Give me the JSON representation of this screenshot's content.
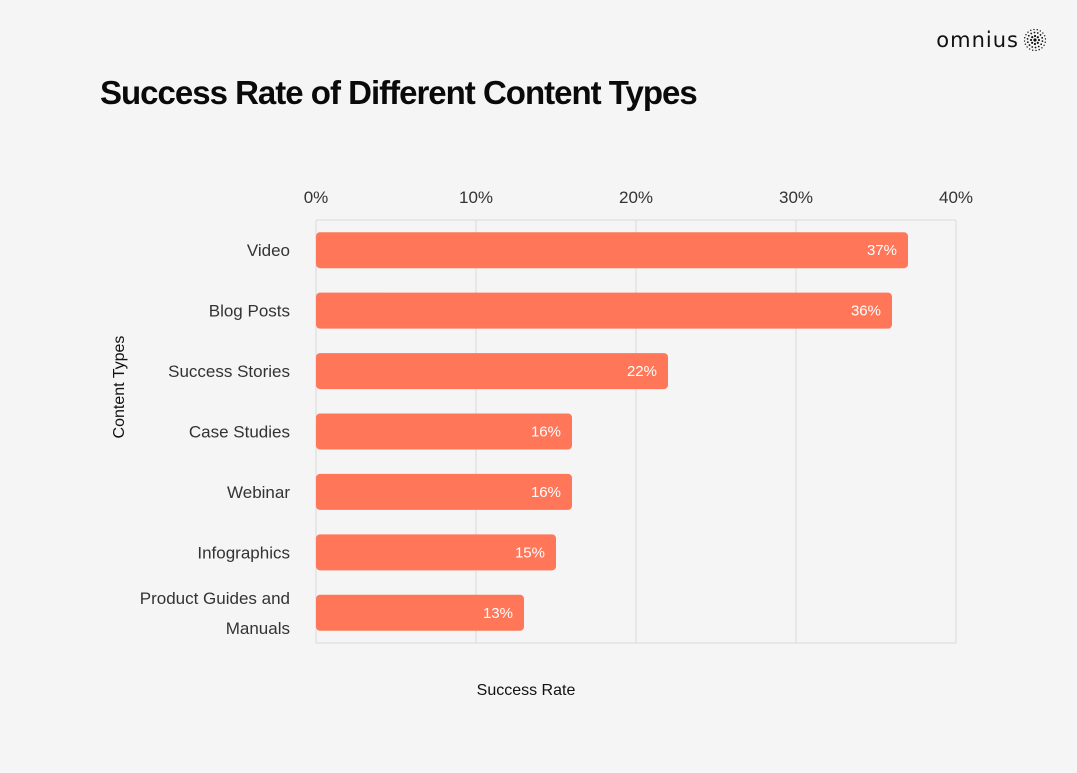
{
  "brand": {
    "name": "omnius",
    "logo_icon": "dotted-sphere-icon"
  },
  "chart_data": {
    "type": "bar",
    "orientation": "horizontal",
    "title": "Success Rate of Different Content Types",
    "xlabel": "Success Rate",
    "ylabel": "Content Types",
    "xlim": [
      0,
      40
    ],
    "x_ticks": [
      "0%",
      "10%",
      "20%",
      "30%",
      "40%"
    ],
    "grid": true,
    "categories": [
      "Video",
      "Blog Posts",
      "Success Stories",
      "Case Studies",
      "Webinar",
      "Infographics",
      "Product Guides and Manuals"
    ],
    "values": [
      37,
      36,
      22,
      16,
      16,
      15,
      13
    ],
    "data_labels": [
      "37%",
      "36%",
      "22%",
      "16%",
      "16%",
      "15%",
      "13%"
    ],
    "bar_color": "#ff7659"
  }
}
